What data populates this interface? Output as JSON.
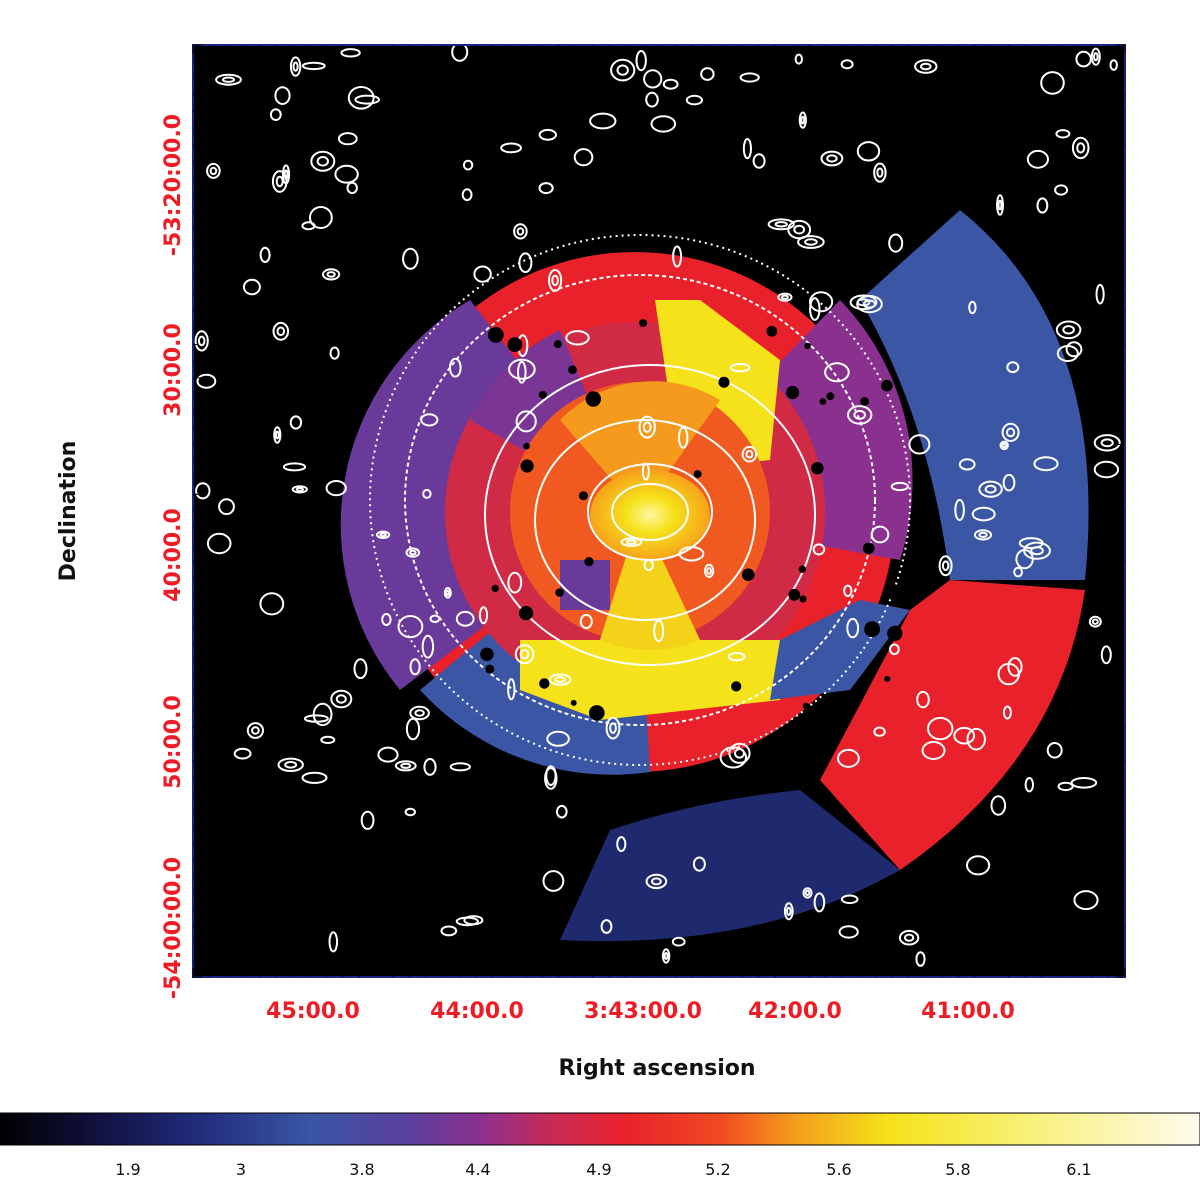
{
  "axes": {
    "xlabel": "Right ascension",
    "ylabel": "Declination",
    "x_ticks": [
      "45:00.0",
      "44:00.0",
      "3:43:00.0",
      "42:00.0",
      "41:00.0"
    ],
    "y_ticks": [
      "-53:20:00.0",
      "30:00.0",
      "40:00.0",
      "50:00.0",
      "-54:00:00.0"
    ]
  },
  "colorbar": {
    "ticks": [
      "1.9",
      "3",
      "3.8",
      "4.4",
      "4.9",
      "5.2",
      "5.6",
      "5.8",
      "6.1"
    ],
    "colors": [
      "#000000",
      "#1a1a5e",
      "#2b3a8c",
      "#3a56a5",
      "#6a3a9a",
      "#b0305a",
      "#e8212b",
      "#f05a20",
      "#f7a21a",
      "#f5e21a",
      "#f7ef6a",
      "#fffbe8"
    ]
  },
  "colors": {
    "tick_label": "#ee1c25",
    "frame": "#1a237e",
    "contour": "#ffffff",
    "background": "#000000"
  }
}
